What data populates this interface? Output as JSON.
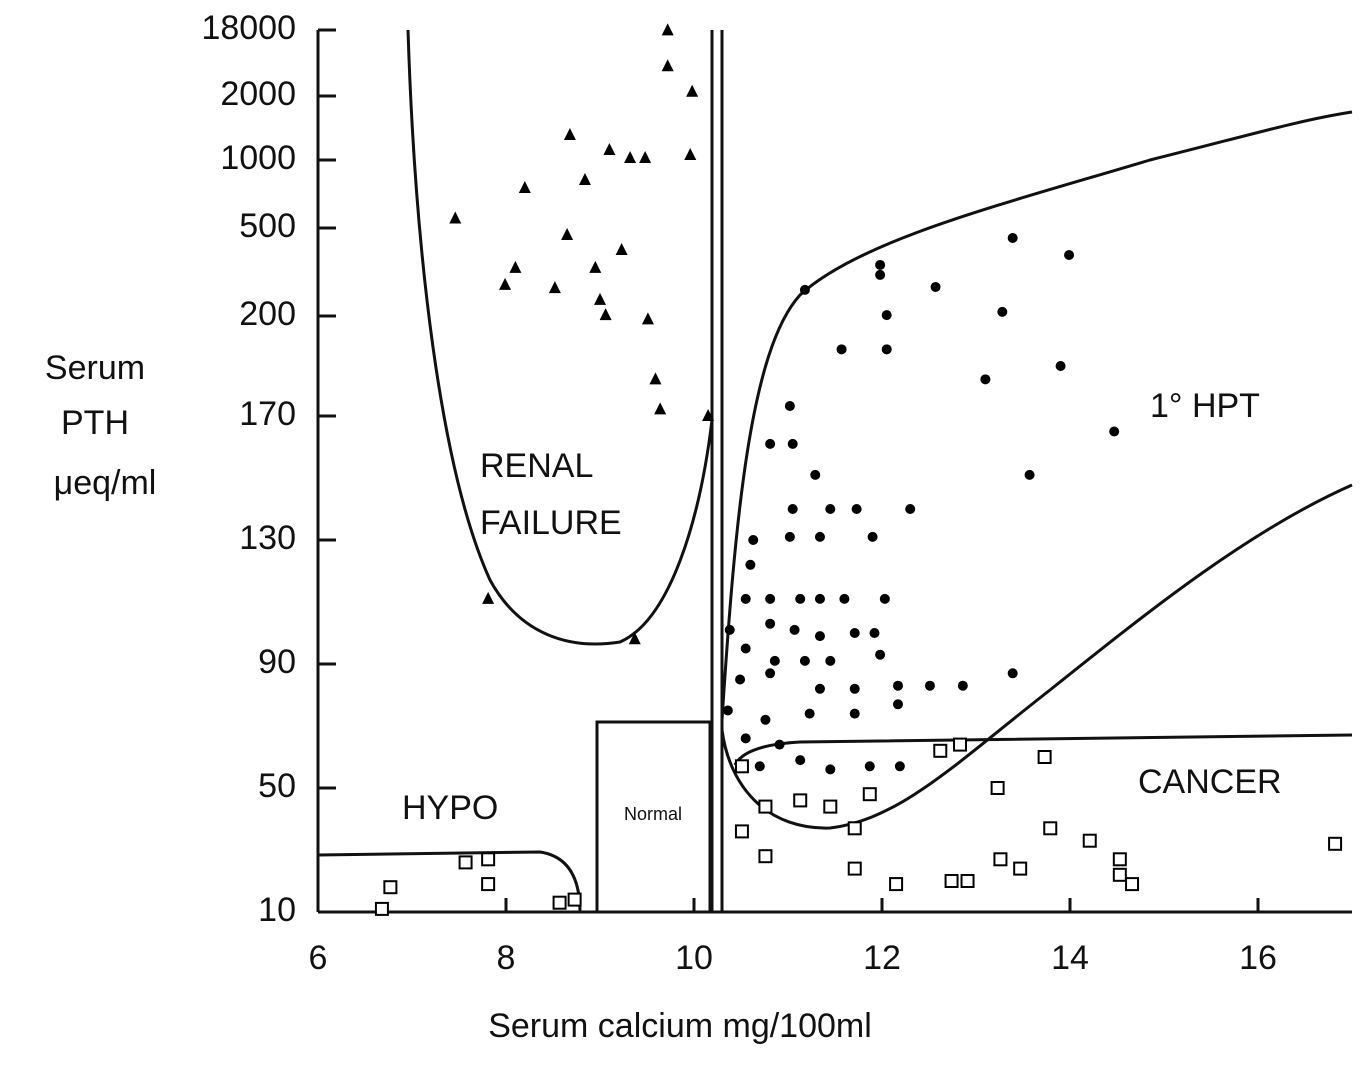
{
  "chart_data": {
    "type": "scatter",
    "xlabel": "Serum calcium mg/100ml",
    "ylabel": [
      "Serum",
      "PTH",
      "μeq/ml"
    ],
    "xlim": [
      6,
      17
    ],
    "xticks": [
      6,
      8,
      10,
      12,
      14,
      16
    ],
    "ylim": [
      10,
      18000
    ],
    "yticks": [
      10,
      50,
      90,
      130,
      170,
      200,
      500,
      1000,
      2000,
      18000
    ],
    "annotations": [
      "RENAL",
      "FAILURE",
      "1° HPT",
      "HYPO",
      "Normal",
      "CANCER"
    ],
    "series": [
      {
        "marker": "triangle",
        "color": "#000000",
        "x": [
          7.46,
          8.1,
          7.99,
          8.52,
          8.65,
          8.68,
          8.84,
          8.2,
          8.95,
          9.0,
          9.06,
          9.1,
          9.23,
          9.32,
          9.48,
          9.51,
          9.59,
          9.64,
          9.72,
          9.72,
          9.98,
          9.96,
          10.15,
          9.37,
          7.81
        ],
        "values": [
          570,
          364,
          306,
          295,
          476,
          1390,
          853,
          794,
          364,
          255,
          203,
          1156,
          425,
          1031,
          1031,
          199,
          181,
          172,
          9200,
          17900,
          3030,
          1078,
          170,
          98,
          111
        ]
      },
      {
        "marker": "dot",
        "color": "#000000",
        "x": [
          11.18,
          11.98,
          11.98,
          12.05,
          12.05,
          11.57,
          12.57,
          13.39,
          13.99,
          13.28,
          13.1,
          13.9,
          14.47,
          13.57,
          11.02,
          10.81,
          11.05,
          11.29,
          11.05,
          11.45,
          11.73,
          12.3,
          10.63,
          11.02,
          11.34,
          11.9,
          10.6,
          10.55,
          10.81,
          11.13,
          11.34,
          11.6,
          12.03,
          10.38,
          10.81,
          11.07,
          11.34,
          11.71,
          11.92,
          10.55,
          10.86,
          11.18,
          11.45,
          11.98,
          10.49,
          10.81,
          11.34,
          11.71,
          12.17,
          12.51,
          12.86,
          13.39,
          10.36,
          10.76,
          11.23,
          11.71,
          12.17,
          10.55,
          10.91,
          11.13,
          11.45,
          11.87,
          12.19,
          10.7
        ],
        "values": [
          289,
          374,
          340,
          203,
          190,
          190,
          299,
          466,
          408,
          214,
          181,
          185,
          165,
          151,
          173,
          161,
          161,
          151,
          140,
          140,
          140,
          140,
          130,
          131,
          131,
          131,
          122,
          111,
          111,
          111,
          111,
          111,
          111,
          101,
          103,
          101,
          99,
          100,
          100,
          95,
          91,
          91,
          91,
          93,
          85,
          87,
          82,
          82,
          83,
          83,
          83,
          87,
          75,
          72,
          74,
          74,
          77,
          66,
          64,
          59,
          56,
          57,
          57,
          57
        ]
      },
      {
        "marker": "square",
        "color": "#000000",
        "x": [
          6.77,
          6.68,
          7.81,
          7.57,
          7.81,
          8.57,
          8.73,
          10.51,
          10.51,
          10.76,
          10.76,
          11.13,
          11.45,
          11.71,
          11.71,
          11.87,
          12.15,
          12.62,
          12.83,
          12.74,
          12.91,
          13.23,
          13.26,
          13.47,
          13.73,
          13.79,
          14.21,
          14.53,
          14.53,
          14.66,
          16.82
        ],
        "values": [
          18,
          11,
          27,
          26,
          19,
          13,
          14,
          57,
          36,
          44,
          28,
          46,
          44,
          37,
          24,
          48,
          19,
          62,
          64,
          20,
          20,
          50,
          27,
          24,
          60,
          37,
          33,
          27,
          22,
          19,
          32
        ]
      }
    ]
  }
}
